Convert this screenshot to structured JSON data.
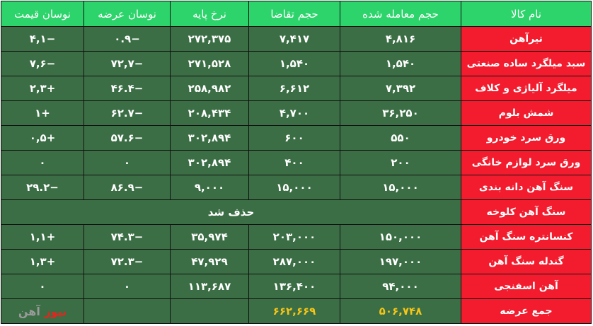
{
  "headers": [
    "نام کالا",
    "حجم معامله شده",
    "حجم تقاضا",
    "نرخ پایه",
    "نوسان عرضه",
    "نوسان قیمت"
  ],
  "rows": [
    {
      "name": "تیرآهن",
      "traded": "۴,۸۱۶",
      "demand": "۷,۴۱۷",
      "base": "۲۷۲,۳۷۵",
      "supply_change": "−۰.۹",
      "price_change": "−۴,۱"
    },
    {
      "name": "سبد میلگرد ساده صنعتی",
      "traded": "۱,۵۴۰",
      "demand": "۱,۵۴۰",
      "base": "۲۷۱,۵۲۸",
      "supply_change": "−۷۲,۷",
      "price_change": "−۷,۶"
    },
    {
      "name": "میلگرد آلیاژی و کلاف",
      "traded": "۷,۳۹۲",
      "demand": "۶,۶۱۲",
      "base": "۲۵۸,۹۸۲",
      "supply_change": "−۴۶.۴",
      "price_change": "+۲,۳"
    },
    {
      "name": "شمش بلوم",
      "traded": "۳۶,۲۵۰",
      "demand": "۴,۷۰۰",
      "base": "۲۰۸,۴۳۴",
      "supply_change": "−۶۲.۷",
      "price_change": "+۱"
    },
    {
      "name": "ورق سرد خودرو",
      "traded": "۵۵۰",
      "demand": "۶۰۰",
      "base": "۳۰۲,۸۹۴",
      "supply_change": "−۵۷.۶",
      "price_change": "+۰,۵"
    },
    {
      "name": "ورق سرد لوازم خانگی",
      "traded": "۲۰۰",
      "demand": "۴۰۰",
      "base": "۳۰۲,۸۹۴",
      "supply_change": "۰",
      "price_change": "۰"
    },
    {
      "name": "سنگ آهن دانه بندی",
      "traded": "۱۵,۰۰۰",
      "demand": "۱۵,۰۰۰",
      "base": "۹,۰۰۰",
      "supply_change": "−۸۶.۹",
      "price_change": "−۲۹.۲"
    },
    {
      "name": "سنگ آهن کلوخه",
      "merged": "حذف شد"
    },
    {
      "name": "کنسانتره سنگ آهن",
      "traded": "۱۵۰,۰۰۰",
      "demand": "۲۰۳,۰۰۰",
      "base": "۳۵,۹۷۴",
      "supply_change": "−۷۴.۳",
      "price_change": "+۱,۱"
    },
    {
      "name": "گندله سنگ آهن",
      "traded": "۱۹۷,۰۰۰",
      "demand": "۲۸۷,۰۰۰",
      "base": "۴۷,۹۲۹",
      "supply_change": "−۷۲.۳",
      "price_change": "+۱,۳"
    },
    {
      "name": "آهن اسفنجی",
      "traded": "۹۴,۰۰۰",
      "demand": "۱۳۶,۴۰۰",
      "base": "۱۱۳,۶۸۷",
      "supply_change": "۰",
      "price_change": "۰"
    }
  ],
  "total": {
    "label": "جمع عرضه",
    "traded": "۵۰۶,۷۴۸",
    "demand": "۶۶۲,۶۶۹"
  },
  "watermark": {
    "part1": "آهن",
    "part2": "نیوز"
  },
  "colors": {
    "header": "#2dd36b",
    "cell": "#3b6e45",
    "name": "#f21c2e",
    "total_text": "#f5c518"
  }
}
